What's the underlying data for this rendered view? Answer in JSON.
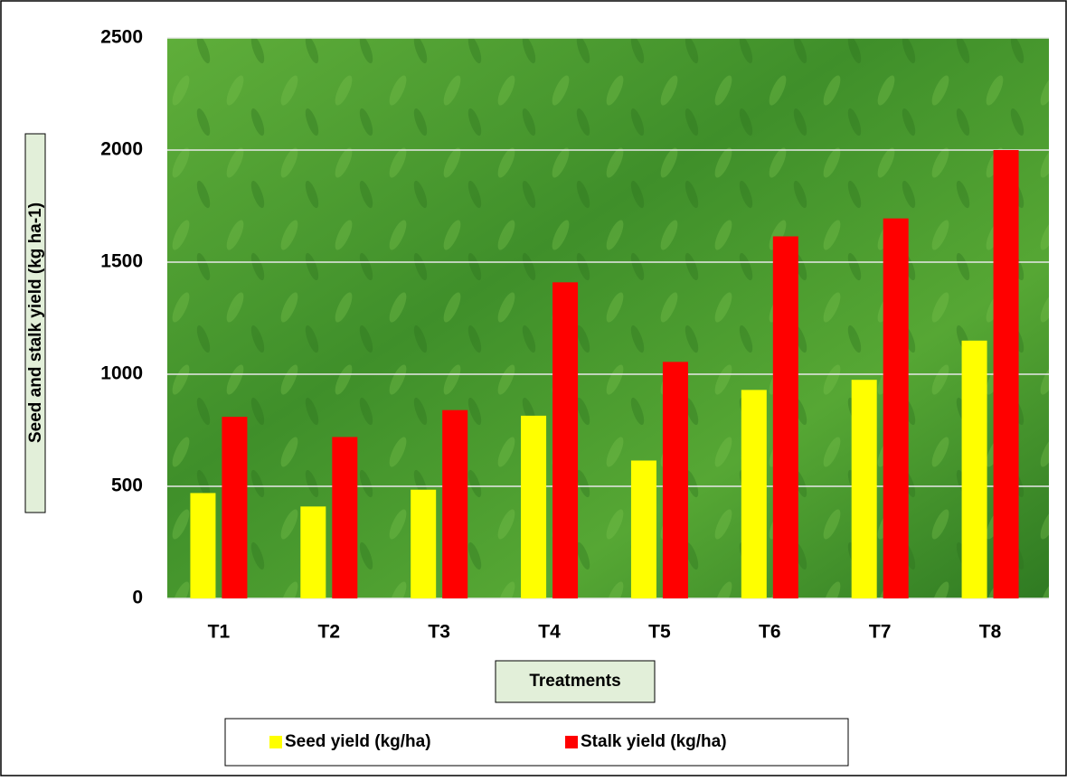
{
  "chart_data": {
    "type": "bar",
    "y_label": "Seed and stalk yield (kg ha-1)",
    "x_label": "Treatments",
    "categories": [
      "T1",
      "T2",
      "T3",
      "T4",
      "T5",
      "T6",
      "T7",
      "T8"
    ],
    "series": [
      {
        "name": "Seed yield (kg/ha)",
        "color": "#ffff00",
        "values": [
          470,
          410,
          485,
          815,
          615,
          930,
          975,
          1150
        ]
      },
      {
        "name": "Stalk yield (kg/ha)",
        "color": "#ff0000",
        "values": [
          810,
          720,
          840,
          1410,
          1055,
          1615,
          1695,
          2000
        ]
      }
    ],
    "ylim": [
      0,
      2500
    ],
    "yticks": [
      0,
      500,
      1000,
      1500,
      2000,
      2500
    ],
    "grid": true
  }
}
